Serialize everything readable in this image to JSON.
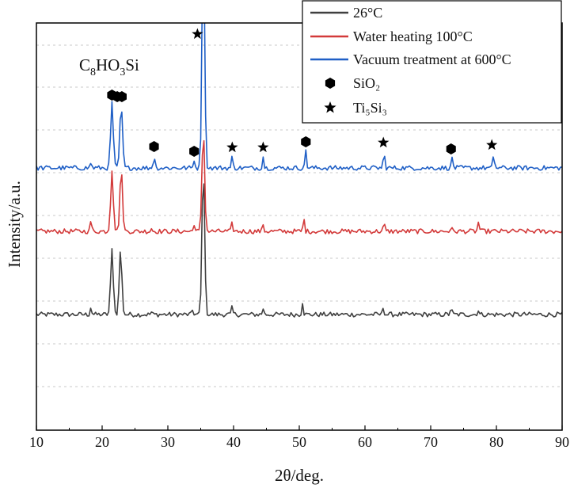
{
  "chart_data": {
    "type": "line",
    "xlabel": "2θ/deg.",
    "ylabel": "Intensity/a.u.",
    "xlim": [
      10,
      90
    ],
    "xticks": [
      10,
      20,
      30,
      40,
      50,
      60,
      70,
      80,
      90
    ],
    "grid": "horizontal dashed",
    "legend_position": "top-right",
    "annotation": {
      "text_parts": [
        "C",
        "8",
        "HO",
        "3",
        "Si"
      ]
    },
    "series": [
      {
        "name": "26°C",
        "color": "#404040",
        "baseline": 0,
        "peaks": [
          [
            18.3,
            10
          ],
          [
            21.5,
            82
          ],
          [
            22.8,
            82
          ],
          [
            27.5,
            3
          ],
          [
            33.8,
            6
          ],
          [
            35.4,
            190
          ],
          [
            39.8,
            9
          ],
          [
            44.5,
            8
          ],
          [
            50.5,
            16
          ],
          [
            62.8,
            10
          ],
          [
            73.1,
            9
          ],
          [
            77.2,
            6
          ]
        ]
      },
      {
        "name": "Water heating 100°C",
        "color": "#d33a3a",
        "baseline": 105,
        "peaks": [
          [
            18.3,
            14
          ],
          [
            21.5,
            78
          ],
          [
            22.9,
            78
          ],
          [
            27.5,
            4
          ],
          [
            34.0,
            10
          ],
          [
            35.4,
            130
          ],
          [
            39.8,
            10
          ],
          [
            44.5,
            9
          ],
          [
            50.7,
            16
          ],
          [
            62.9,
            10
          ],
          [
            73.1,
            5
          ],
          [
            77.3,
            13
          ]
        ]
      },
      {
        "name": "Vacuum treatment at 600°C",
        "color": "#1f5fc6",
        "baseline": 185,
        "peaks": [
          [
            18.3,
            7
          ],
          [
            21.5,
            82
          ],
          [
            22.9,
            80
          ],
          [
            27.9,
            17
          ],
          [
            34.0,
            11
          ],
          [
            35.4,
            300
          ],
          [
            39.8,
            14
          ],
          [
            44.5,
            14
          ],
          [
            51.0,
            23
          ],
          [
            62.9,
            20
          ],
          [
            73.3,
            14
          ],
          [
            79.6,
            17
          ]
        ]
      }
    ],
    "markers": [
      {
        "name": "SiO₂",
        "symbol": "hexagon",
        "x": [
          21.5,
          22.3,
          23.0,
          27.9,
          34.0,
          51.0,
          73.1
        ]
      },
      {
        "name": "Ti₅Si₃",
        "symbol": "star",
        "x": [
          34.5,
          39.8,
          44.5,
          62.8,
          79.3
        ]
      }
    ]
  }
}
